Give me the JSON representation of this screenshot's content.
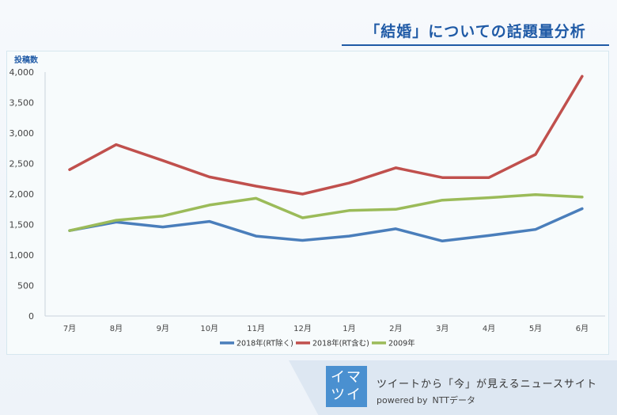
{
  "title": "「結婚」についての話題量分析",
  "chart_data": {
    "type": "line",
    "ylabel": "投稿数",
    "xlabel": "",
    "ylim": [
      0,
      4000
    ],
    "yticks": [
      0,
      500,
      1000,
      1500,
      2000,
      2500,
      3000,
      3500,
      4000
    ],
    "ytick_labels": [
      "0",
      "500",
      "1,000",
      "1,500",
      "2,000",
      "2,500",
      "3,000",
      "3,500",
      "4,000"
    ],
    "categories": [
      "7月",
      "8月",
      "9月",
      "10月",
      "11月",
      "12月",
      "1月",
      "2月",
      "3月",
      "4月",
      "5月",
      "6月"
    ],
    "grid": false,
    "legend_position": "bottom",
    "series": [
      {
        "name": "2018年(RT除く)",
        "color": "#4a7ebb",
        "values": [
          1400,
          1540,
          1460,
          1550,
          1310,
          1240,
          1310,
          1430,
          1230,
          1320,
          1420,
          1760
        ]
      },
      {
        "name": "2018年(RT含む)",
        "color": "#c0504d",
        "values": [
          2400,
          2810,
          2550,
          2280,
          2130,
          2000,
          2180,
          2430,
          2270,
          2270,
          2650,
          3930
        ]
      },
      {
        "name": "2009年",
        "color": "#9bbb59",
        "values": [
          1400,
          1570,
          1640,
          1820,
          1930,
          1610,
          1730,
          1750,
          1900,
          1940,
          1990,
          1950
        ]
      }
    ]
  },
  "footer": {
    "logo_line1": "イマ",
    "logo_line2": "ツイ",
    "tagline": "ツイートから「今」が見えるニュースサイト",
    "powered_by": "powered by",
    "brand": "NTTデータ"
  }
}
